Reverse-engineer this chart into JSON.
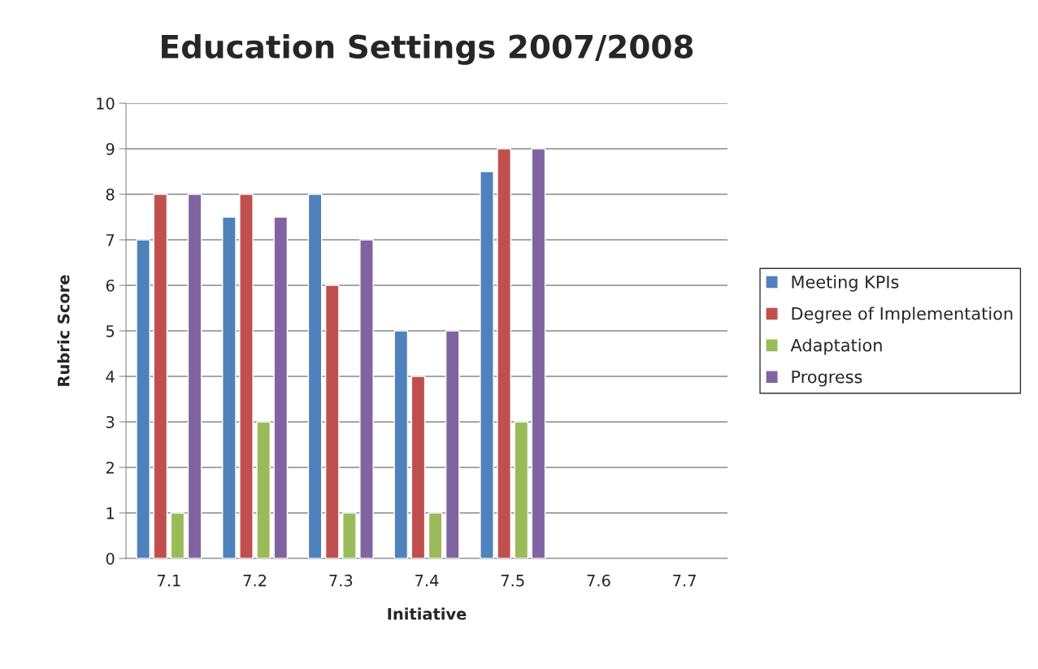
{
  "chart_data": {
    "type": "bar",
    "title": "Education Settings 2007/2008",
    "xlabel": "Initiative",
    "ylabel": "Rubric Score",
    "categories": [
      "7.1",
      "7.2",
      "7.3",
      "7.4",
      "7.5",
      "7.6",
      "7.7"
    ],
    "series": [
      {
        "name": "Meeting KPIs",
        "color": "#4f81bd",
        "values": [
          7,
          7.5,
          8,
          5,
          8.5,
          null,
          null
        ]
      },
      {
        "name": "Degree of Implementation",
        "color": "#c0504d",
        "values": [
          8,
          8,
          6,
          4,
          9,
          null,
          null
        ]
      },
      {
        "name": "Adaptation",
        "color": "#9bbb59",
        "values": [
          1,
          3,
          1,
          1,
          3,
          null,
          null
        ]
      },
      {
        "name": "Progress",
        "color": "#8064a2",
        "values": [
          8,
          7.5,
          7,
          5,
          9,
          null,
          null
        ]
      }
    ],
    "ylim": [
      0,
      10
    ],
    "yticks": [
      0,
      1,
      2,
      3,
      4,
      5,
      6,
      7,
      8,
      9,
      10
    ],
    "grid": "y",
    "legend": "right"
  }
}
